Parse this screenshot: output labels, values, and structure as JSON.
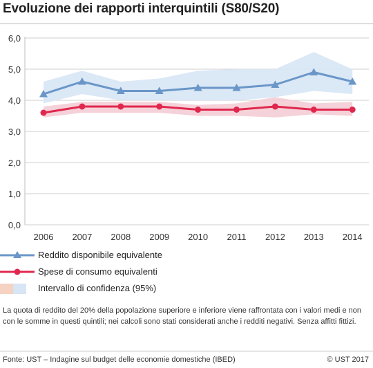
{
  "title": "Evoluzione dei rapporti interquintili (S80/S20)",
  "chart_data": {
    "type": "line",
    "categories": [
      "2006",
      "2007",
      "2008",
      "2009",
      "2010",
      "2011",
      "2012",
      "2013",
      "2014"
    ],
    "ylim": [
      0,
      6
    ],
    "yticks": [
      "0,0",
      "1,0",
      "2,0",
      "3,0",
      "4,0",
      "5,0",
      "6,0"
    ],
    "grid": true,
    "series": [
      {
        "name": "Reddito disponibile equivalente",
        "values": [
          4.2,
          4.6,
          4.3,
          4.3,
          4.4,
          4.4,
          4.5,
          4.9,
          4.6
        ],
        "ci_low": [
          3.9,
          4.2,
          4.0,
          4.0,
          4.0,
          4.0,
          4.1,
          4.3,
          4.2
        ],
        "ci_high": [
          4.6,
          4.95,
          4.6,
          4.7,
          4.95,
          5.0,
          5.0,
          5.55,
          5.0
        ],
        "color": "#6a96c8",
        "band_color": "#d7e5f5",
        "marker": "triangle"
      },
      {
        "name": "Spese di consumo equivalenti",
        "values": [
          3.6,
          3.8,
          3.8,
          3.8,
          3.7,
          3.7,
          3.8,
          3.7,
          3.7
        ],
        "ci_low": [
          3.45,
          3.6,
          3.6,
          3.6,
          3.5,
          3.5,
          3.45,
          3.55,
          3.5
        ],
        "ci_high": [
          3.8,
          3.95,
          3.95,
          3.95,
          3.85,
          3.9,
          4.1,
          3.9,
          3.95
        ],
        "color": "#e0284e",
        "band_color": "#f4cdd5",
        "marker": "circle"
      }
    ],
    "legend": {
      "placement": "bottom",
      "items": [
        {
          "label": "Reddito disponibile equivalente",
          "kind": "line-triangle",
          "color": "#6a96c8"
        },
        {
          "label": "Spese di consumo equivalenti",
          "kind": "line-circle",
          "color": "#e0284e"
        },
        {
          "label": "Intervallo di confidenza (95%)",
          "kind": "bands",
          "colors": [
            "#f6d2c2",
            "#d7e5f5"
          ]
        }
      ]
    }
  },
  "note": "La quota di reddito del 20% della popolazione superiore e inferiore viene raffrontata con i valori medi e non con le somme in questi quintili; nei calcoli sono stati considerati anche i redditi negativi. Senza affitti fittizi.",
  "source": "Fonte: UST – Indagine sul budget delle economie domestiche (IBED)",
  "copyright": "© UST 2017"
}
